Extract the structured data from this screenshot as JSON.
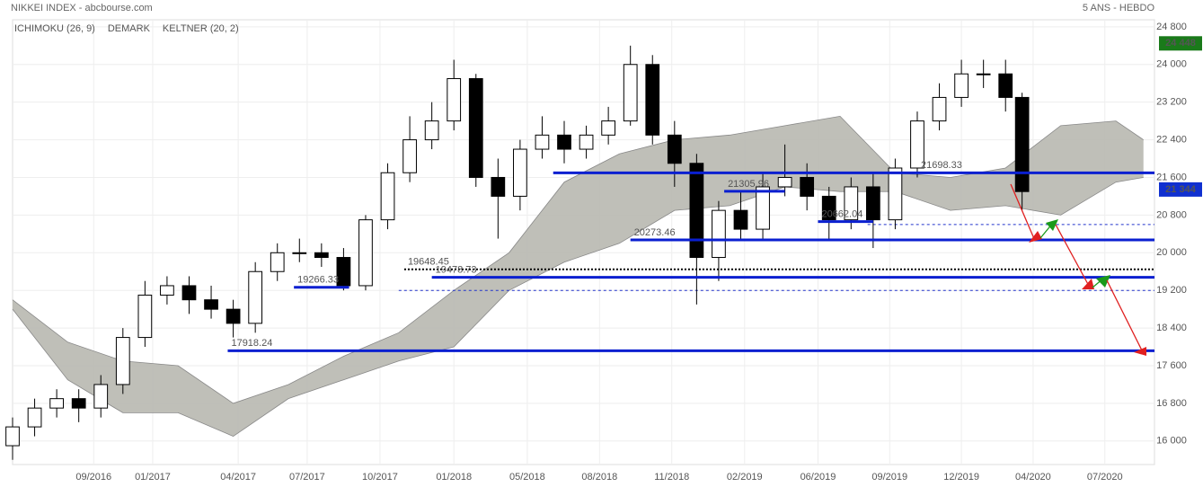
{
  "chart_data": {
    "type": "candlestick",
    "title": "NIKKEI INDEX - abcbourse.com",
    "subtitle": "5 ANS - HEBDO",
    "indicators": [
      {
        "name": "ICHIMOKU (26, 9)",
        "color": "#2222cc"
      },
      {
        "name": "DEMARK",
        "color": "#228822"
      },
      {
        "name": "KELTNER (20, 2)",
        "color": "#44aa44"
      }
    ],
    "xlim": [
      0,
      207
    ],
    "xticks": [
      {
        "value": 14.7,
        "label": "09/2016"
      },
      {
        "value": 25.4,
        "label": "01/2017"
      },
      {
        "value": 40.9,
        "label": "04/2017"
      },
      {
        "value": 53.4,
        "label": "07/2017"
      },
      {
        "value": 66.6,
        "label": "10/2017"
      },
      {
        "value": 80,
        "label": "01/2018"
      },
      {
        "value": 93.3,
        "label": "05/2018"
      },
      {
        "value": 106.4,
        "label": "08/2018"
      },
      {
        "value": 119.5,
        "label": "11/2018"
      },
      {
        "value": 132.7,
        "label": "02/2019"
      },
      {
        "value": 146,
        "label": "06/2019"
      },
      {
        "value": 159,
        "label": "09/2019"
      },
      {
        "value": 172,
        "label": "12/2019"
      },
      {
        "value": 185,
        "label": "04/2020"
      },
      {
        "value": 198,
        "label": "07/2020"
      }
    ],
    "ylim": [
      15500,
      24950
    ],
    "yticks": [
      {
        "value": 16000,
        "label": "16 000"
      },
      {
        "value": 16800,
        "label": "16 800"
      },
      {
        "value": 17600,
        "label": "17 600"
      },
      {
        "value": 18400,
        "label": "18 400"
      },
      {
        "value": 19200,
        "label": "19 200"
      },
      {
        "value": 20000,
        "label": "20 000"
      },
      {
        "value": 20800,
        "label": "20 800"
      },
      {
        "value": 21600,
        "label": "21 600"
      },
      {
        "value": 22400,
        "label": "22 400"
      },
      {
        "value": 23200,
        "label": "23 200"
      },
      {
        "value": 24000,
        "label": "24 000"
      },
      {
        "value": 24800,
        "label": "24 800"
      }
    ],
    "grid": true,
    "x": [
      0,
      4,
      8,
      12,
      16,
      20,
      24,
      28,
      32,
      36,
      40,
      44,
      48,
      52,
      56,
      60,
      64,
      68,
      72,
      76,
      80,
      84,
      88,
      92,
      96,
      100,
      104,
      108,
      112,
      116,
      120,
      124,
      128,
      132,
      136,
      140,
      144,
      148,
      152,
      156,
      160,
      164,
      168,
      172,
      176,
      180,
      183
    ],
    "open": [
      15900,
      16300,
      16700,
      16900,
      16700,
      17200,
      18200,
      19100,
      19300,
      19000,
      18800,
      18500,
      19600,
      20000,
      20000,
      19900,
      19300,
      20700,
      21700,
      22400,
      22800,
      23700,
      21600,
      21200,
      22200,
      22500,
      22200,
      22500,
      22800,
      24000,
      22500,
      21900,
      19900,
      20900,
      20500,
      21400,
      21600,
      21200,
      20700,
      21400,
      20700,
      21800,
      22800,
      23300,
      23800,
      23800,
      23300
    ],
    "high": [
      16500,
      16900,
      17100,
      17100,
      17400,
      18400,
      19400,
      19500,
      19500,
      19300,
      19000,
      19800,
      20200,
      20300,
      20200,
      20100,
      20800,
      21900,
      22900,
      23200,
      24100,
      23800,
      22000,
      22400,
      22900,
      22800,
      22700,
      23100,
      24400,
      24200,
      22800,
      22100,
      21100,
      21300,
      21700,
      22300,
      21900,
      21400,
      21600,
      21700,
      22000,
      23000,
      23600,
      24100,
      24100,
      24100,
      23400
    ],
    "low": [
      15600,
      16100,
      16500,
      16400,
      16500,
      17000,
      18000,
      18900,
      18700,
      18600,
      18200,
      18300,
      19400,
      19800,
      19700,
      19200,
      19200,
      20500,
      21500,
      22200,
      22600,
      21400,
      20300,
      20900,
      22000,
      21900,
      22000,
      22300,
      22700,
      22300,
      21400,
      18900,
      19400,
      20300,
      20300,
      21200,
      20900,
      20300,
      20500,
      20100,
      20500,
      21600,
      22600,
      23100,
      23500,
      23000,
      20900
    ],
    "close": [
      16300,
      16700,
      16900,
      16700,
      17200,
      18200,
      19100,
      19300,
      19000,
      18800,
      18500,
      19600,
      20000,
      20000,
      19900,
      19300,
      20700,
      21700,
      22400,
      22800,
      23700,
      21600,
      21200,
      22200,
      22500,
      22200,
      22500,
      22800,
      24000,
      22500,
      21900,
      19900,
      20900,
      20500,
      21400,
      21600,
      21200,
      20700,
      21400,
      20700,
      21800,
      22800,
      23300,
      23800,
      23800,
      23300,
      21300
    ],
    "cloud": {
      "color": "#b8b8b0",
      "x": [
        0,
        10,
        20,
        30,
        40,
        50,
        60,
        70,
        80,
        90,
        100,
        110,
        120,
        130,
        140,
        150,
        160,
        170,
        180,
        190,
        200,
        205
      ],
      "top": [
        19000,
        18100,
        17700,
        17600,
        16800,
        17200,
        17800,
        18300,
        19200,
        20000,
        21500,
        22100,
        22400,
        22500,
        22700,
        22900,
        21700,
        21600,
        21800,
        22700,
        22800,
        22400
      ],
      "bottom": [
        18800,
        17300,
        16600,
        16600,
        16100,
        16900,
        17300,
        17700,
        18000,
        19200,
        19800,
        20200,
        20900,
        21000,
        21400,
        21300,
        21300,
        20900,
        21000,
        20800,
        21500,
        21600
      ]
    },
    "levels": [
      {
        "value": 21698.33,
        "from": 98,
        "to": 207,
        "label_at": 164
      },
      {
        "value": 21305.96,
        "from": 129,
        "to": 140,
        "label_at": 129
      },
      {
        "value": 20662.04,
        "from": 146,
        "to": 156,
        "label_at": 146
      },
      {
        "value": 20273.46,
        "from": 112,
        "to": 207,
        "label_at": 112
      },
      {
        "value": 19478.73,
        "from": 76,
        "to": 207,
        "label_at": 76
      },
      {
        "value": 19266.33,
        "from": 51,
        "to": 61,
        "label_at": 51
      },
      {
        "value": 17918.24,
        "from": 39,
        "to": 207,
        "label_at": 39
      }
    ],
    "dotted_level": {
      "value": 19648.45,
      "from": 71,
      "to": 207,
      "label_at": 71
    },
    "dashed_levels": [
      {
        "value": 20600,
        "from": 155
      },
      {
        "value": 19200,
        "from": 70
      }
    ],
    "price_tags": [
      {
        "value": 24448,
        "label": "24 448",
        "color": "#1a7a1a"
      },
      {
        "value": 21344,
        "label": "21 344",
        "color": "#1030d0"
      }
    ]
  }
}
